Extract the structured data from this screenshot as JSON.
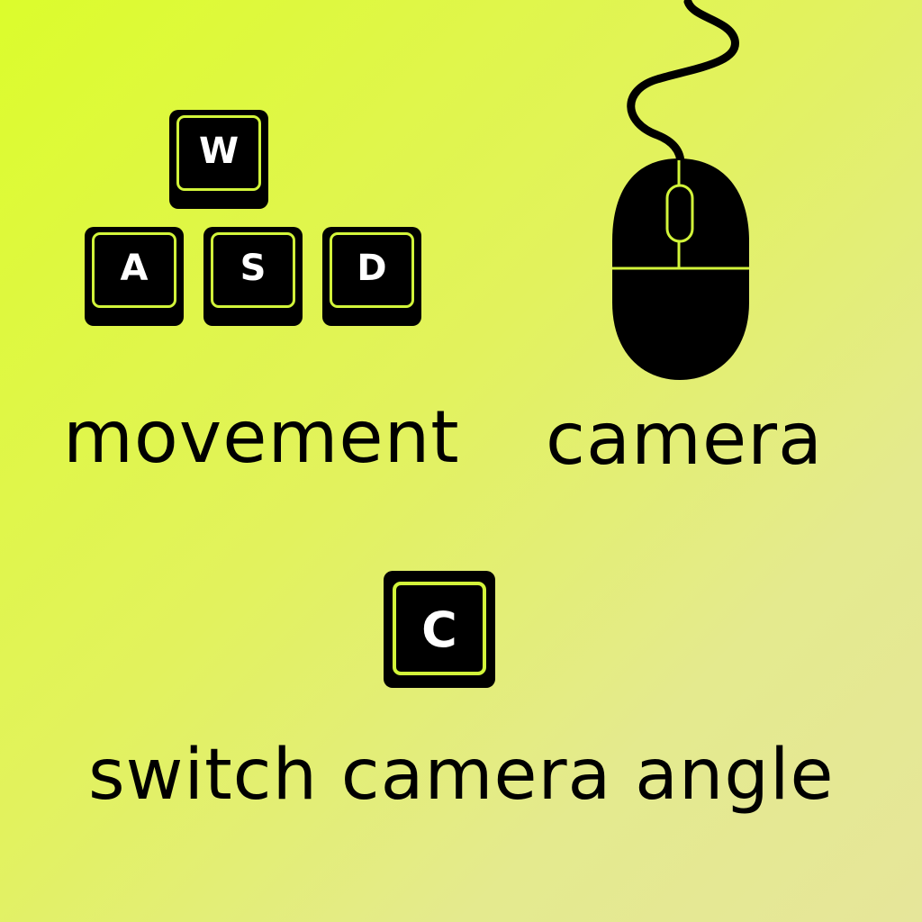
{
  "controls": {
    "movement": {
      "keys": {
        "w": "W",
        "a": "A",
        "s": "S",
        "d": "D"
      },
      "label": "movement"
    },
    "camera": {
      "icon": "mouse-icon",
      "label": "camera"
    },
    "switch_camera": {
      "key": "C",
      "label": "switch camera angle"
    }
  },
  "colors": {
    "accent": "#d2f53a",
    "key_fill": "#000000",
    "key_text": "#ffffff",
    "background_start": "#dcfc2c",
    "background_end": "#e6e69a"
  }
}
